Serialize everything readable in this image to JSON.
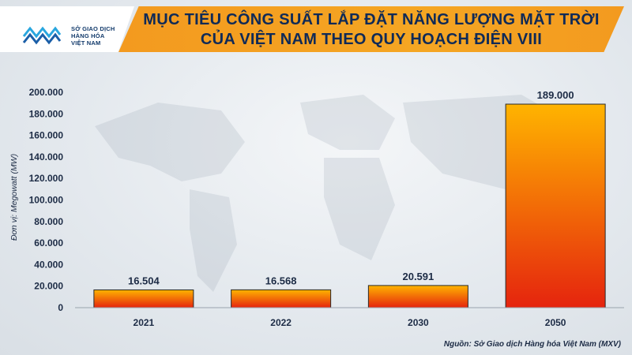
{
  "header": {
    "logo_lines": [
      "SỞ GIAO DỊCH",
      "HÀNG HÓA",
      "VIỆT NAM"
    ],
    "title_line1": "MỤC TIÊU CÔNG SUẤT LẮP ĐẶT NĂNG LƯỢNG MẶT TRỜI",
    "title_line2": "CỦA VIỆT NAM THEO QUY HOẠCH ĐIỆN VIII"
  },
  "footer": {
    "source": "Nguồn: Sở Giao dịch Hàng hóa Việt Nam (MXV)"
  },
  "colors": {
    "bar_top": "#ffb400",
    "bar_bottom": "#e5240e",
    "bar_stroke": "#2a2a2a",
    "title_bg": "#f5a623",
    "title_text": "#0f2a57"
  },
  "chart_data": {
    "type": "bar",
    "title": "MỤC TIÊU CÔNG SUẤT LẮP ĐẶT NĂNG LƯỢNG MẶT TRỜI CỦA VIỆT NAM THEO QUY HOẠCH ĐIỆN VIII",
    "categories": [
      "2021",
      "2022",
      "2030",
      "2050"
    ],
    "values": [
      16504,
      16568,
      20591,
      189000
    ],
    "data_labels": [
      "16.504",
      "16.568",
      "20.591",
      "189.000"
    ],
    "ylabel": "Đơn vị: Megowatt (MW)",
    "xlabel": "",
    "ylim": [
      0,
      200000
    ],
    "yticks": [
      0,
      20000,
      40000,
      60000,
      80000,
      100000,
      120000,
      140000,
      160000,
      180000,
      200000
    ],
    "ytick_labels": [
      "0",
      "20.000",
      "40.000",
      "60.000",
      "80.000",
      "100.000",
      "120.000",
      "140.000",
      "160.000",
      "180.000",
      "200.000"
    ],
    "grid": false,
    "legend": "none"
  }
}
